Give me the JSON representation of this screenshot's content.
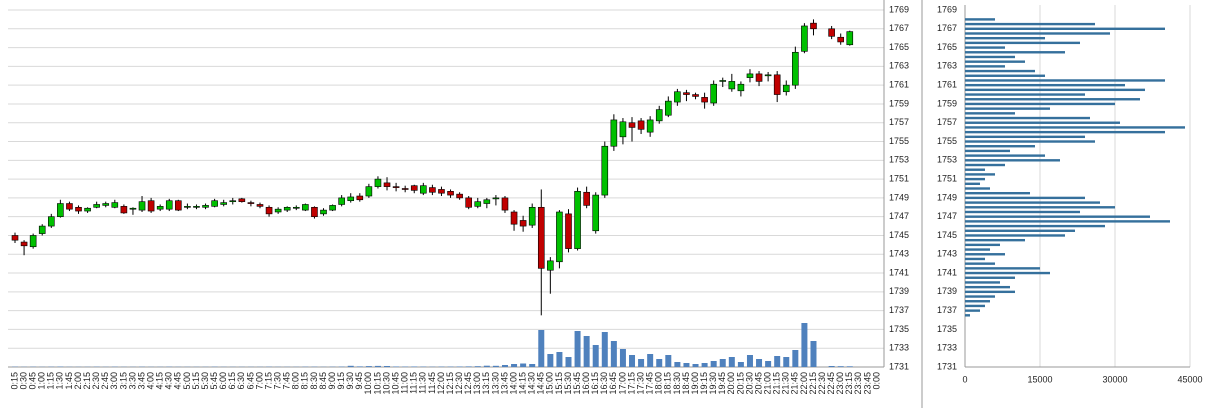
{
  "chart_data": [
    {
      "type": "candlestick",
      "categories": [
        "0:15",
        "0:30",
        "0:45",
        "1:00",
        "1:15",
        "1:30",
        "1:45",
        "2:00",
        "2:15",
        "2:30",
        "2:45",
        "3:00",
        "3:15",
        "3:30",
        "3:45",
        "4:00",
        "4:15",
        "4:30",
        "4:45",
        "5:00",
        "5:15",
        "5:30",
        "5:45",
        "6:00",
        "6:15",
        "6:30",
        "6:45",
        "7:00",
        "7:15",
        "7:30",
        "7:45",
        "8:00",
        "8:15",
        "8:30",
        "8:45",
        "9:00",
        "9:15",
        "9:30",
        "9:45",
        "10:00",
        "10:15",
        "10:30",
        "10:45",
        "11:00",
        "11:15",
        "11:30",
        "11:45",
        "12:00",
        "12:15",
        "12:30",
        "12:45",
        "13:00",
        "13:15",
        "13:30",
        "13:45",
        "14:00",
        "14:15",
        "14:30",
        "14:45",
        "15:00",
        "15:15",
        "15:30",
        "15:45",
        "16:00",
        "16:15",
        "16:30",
        "16:45",
        "17:00",
        "17:15",
        "17:30",
        "17:45",
        "18:00",
        "18:15",
        "18:30",
        "18:45",
        "19:00",
        "19:15",
        "19:30",
        "19:45",
        "20:00",
        "20:15",
        "20:30",
        "20:45",
        "21:00",
        "21:15",
        "21:30",
        "21:45",
        "22:00",
        "22:15",
        "22:30",
        "22:45",
        "23:00",
        "23:15",
        "23:30",
        "23:45",
        "0:00"
      ],
      "open": [
        1745,
        1744.3,
        1743.8,
        1745.2,
        1746,
        1747,
        1748.4,
        1748,
        1747.6,
        1748,
        1748.2,
        1748,
        1748.1,
        1747.8,
        1747.7,
        1748.7,
        1747.8,
        1747.8,
        1748.7,
        1748,
        1748,
        1748,
        1748.1,
        1748.3,
        1748.6,
        1748.9,
        1748.5,
        1748.3,
        1748,
        1747.5,
        1747.7,
        1747.9,
        1747.7,
        1748,
        1747.3,
        1747.7,
        1748.3,
        1748.7,
        1749.2,
        1749.2,
        1750.2,
        1750.6,
        1750.2,
        1750,
        1750.3,
        1749.5,
        1750.1,
        1749.9,
        1749.7,
        1749.4,
        1749,
        1748.1,
        1748.4,
        1748.9,
        1749,
        1747.5,
        1746.6,
        1746.1,
        1748,
        1741.3,
        1742.2,
        1747.3,
        1743.6,
        1749.6,
        1745.5,
        1749.3,
        1754.5,
        1755.5,
        1757,
        1757.2,
        1756,
        1757.2,
        1757.8,
        1759.2,
        1760.2,
        1760,
        1759.7,
        1759.1,
        1761.4,
        1760.6,
        1760.4,
        1761.8,
        1762.2,
        1762,
        1762.1,
        1760.3,
        1761,
        1764.6,
        1767.6,
        null,
        1767,
        1766.1,
        1765.3,
        null,
        null,
        null
      ],
      "high": [
        1745.3,
        1744.5,
        1745.2,
        1746.2,
        1747.3,
        1748.8,
        1748.6,
        1748.2,
        1748,
        1748.6,
        1748.6,
        1748.8,
        1748.3,
        1748,
        1749.2,
        1749,
        1748.3,
        1748.9,
        1748.8,
        1748.4,
        1748.3,
        1748.4,
        1748.9,
        1748.8,
        1749,
        1749,
        1748.7,
        1748.5,
        1748.2,
        1748,
        1748.1,
        1748.2,
        1748.4,
        1748.1,
        1747.9,
        1748.3,
        1749.3,
        1749.5,
        1749.5,
        1750.5,
        1751.3,
        1751.2,
        1750.6,
        1750.3,
        1750.4,
        1750.6,
        1750.4,
        1750.2,
        1749.9,
        1749.6,
        1749.2,
        1749,
        1749,
        1749.3,
        1749.2,
        1747.7,
        1747.1,
        1748.4,
        1749.9,
        1742.7,
        1747.7,
        1747.8,
        1750.1,
        1750.2,
        1749.6,
        1755,
        1757.9,
        1757.5,
        1757.6,
        1757.5,
        1757.7,
        1758.8,
        1759.8,
        1760.6,
        1760.5,
        1760.2,
        1760.2,
        1761.5,
        1761.8,
        1762.2,
        1761.4,
        1762.7,
        1762.5,
        1762.4,
        1762.5,
        1761.5,
        1765.1,
        1767.6,
        1768,
        null,
        1767.3,
        1766.5,
        1766.8,
        null,
        null,
        null
      ],
      "low": [
        1744.2,
        1742.9,
        1743.6,
        1745,
        1745.8,
        1746.9,
        1747.6,
        1747.3,
        1747.4,
        1747.9,
        1748,
        1747.9,
        1747.3,
        1747.2,
        1747.5,
        1747.4,
        1747.6,
        1747.6,
        1747.6,
        1747.8,
        1747.8,
        1747.8,
        1748,
        1748.1,
        1748.3,
        1748.5,
        1748.1,
        1747.9,
        1747,
        1747.3,
        1747.5,
        1747.7,
        1747.6,
        1746.8,
        1747.1,
        1747.6,
        1748.1,
        1748.5,
        1748.6,
        1749,
        1750,
        1749.8,
        1749.7,
        1749.6,
        1749.5,
        1749.3,
        1749.3,
        1749.2,
        1749,
        1748.8,
        1747.8,
        1747.9,
        1747.9,
        1748.2,
        1747.4,
        1745.5,
        1745.4,
        1745.8,
        1736.5,
        1738.8,
        1741.5,
        1743.2,
        1743.4,
        1747.9,
        1745.2,
        1749,
        1754,
        1754.7,
        1755,
        1755.8,
        1755.5,
        1756.9,
        1757.6,
        1758.8,
        1759.3,
        1759.5,
        1758.5,
        1758.8,
        1760.8,
        1760.3,
        1759.8,
        1761.3,
        1760.9,
        1761.4,
        1759.2,
        1759.9,
        1760.6,
        1764.4,
        1766.3,
        null,
        1765.9,
        1765.3,
        1765.2,
        null,
        null,
        null
      ],
      "close": [
        1744.5,
        1743.9,
        1745,
        1746,
        1747,
        1748.4,
        1747.8,
        1747.6,
        1747.9,
        1748.3,
        1748.4,
        1748.5,
        1747.4,
        1747.9,
        1748.6,
        1747.6,
        1748.1,
        1748.7,
        1747.7,
        1748.1,
        1748.1,
        1748.2,
        1748.7,
        1748.5,
        1748.7,
        1748.6,
        1748.4,
        1748.1,
        1747.3,
        1747.8,
        1748,
        1748,
        1748.3,
        1747,
        1747.7,
        1748.2,
        1749,
        1749.1,
        1748.8,
        1750.2,
        1751,
        1750.2,
        1750.1,
        1749.9,
        1749.8,
        1750.3,
        1749.6,
        1749.5,
        1749.3,
        1749,
        1748,
        1748.6,
        1748.8,
        1749,
        1747.7,
        1746.2,
        1746,
        1748,
        1741.5,
        1742.3,
        1747.5,
        1743.6,
        1749.7,
        1748.2,
        1749.3,
        1754.5,
        1757.3,
        1757.1,
        1756.5,
        1756.3,
        1757.3,
        1758.4,
        1759.3,
        1760.3,
        1760,
        1759.8,
        1759.2,
        1761.1,
        1761.5,
        1761.4,
        1761.1,
        1762.2,
        1761.4,
        1762.1,
        1760,
        1761,
        1764.5,
        1767.3,
        1767,
        null,
        1766.2,
        1765.6,
        1766.7,
        null,
        null,
        null
      ],
      "volume": [
        300,
        200,
        300,
        200,
        300,
        400,
        200,
        200,
        200,
        300,
        200,
        300,
        200,
        200,
        300,
        200,
        200,
        300,
        200,
        200,
        200,
        200,
        300,
        200,
        200,
        200,
        200,
        200,
        300,
        200,
        200,
        200,
        300,
        300,
        200,
        300,
        400,
        1200,
        600,
        900,
        1100,
        1000,
        500,
        400,
        500,
        400,
        300,
        400,
        400,
        500,
        600,
        800,
        1300,
        1200,
        2000,
        3000,
        3500,
        3000,
        37000,
        13000,
        15000,
        10000,
        36000,
        31000,
        22000,
        35000,
        26000,
        18000,
        12000,
        8000,
        13000,
        8000,
        12000,
        5000,
        4000,
        3000,
        4000,
        6000,
        8000,
        10000,
        5000,
        12000,
        8000,
        6000,
        11000,
        10000,
        17000,
        44000,
        26000,
        null,
        1000,
        800,
        700,
        null,
        null,
        null
      ],
      "ylim": [
        1731,
        1769
      ],
      "yticks": [
        1731,
        1733,
        1735,
        1737,
        1739,
        1741,
        1743,
        1745,
        1747,
        1749,
        1751,
        1753,
        1755,
        1757,
        1759,
        1761,
        1763,
        1765,
        1767,
        1769
      ],
      "grid": true,
      "up_color": "#00c000",
      "down_color": "#c00000",
      "volume_color": "#4f81bd"
    },
    {
      "type": "bar",
      "orientation": "horizontal",
      "prices": [
        1768,
        1767.5,
        1767,
        1766.5,
        1766,
        1765.5,
        1765,
        1764.5,
        1764,
        1763.5,
        1763,
        1762.5,
        1762,
        1761.5,
        1761,
        1760.5,
        1760,
        1759.5,
        1759,
        1758.5,
        1758,
        1757.5,
        1757,
        1756.5,
        1756,
        1755.5,
        1755,
        1754.5,
        1754,
        1753.5,
        1753,
        1752.5,
        1752,
        1751.5,
        1751,
        1750.5,
        1750,
        1749.5,
        1749,
        1748.5,
        1748,
        1747.5,
        1747,
        1746.5,
        1746,
        1745.5,
        1745,
        1744.5,
        1744,
        1743.5,
        1743,
        1742.5,
        1742,
        1741.5,
        1741,
        1740.5,
        1740,
        1739.5,
        1739,
        1738.5,
        1738,
        1737.5,
        1737,
        1736.5
      ],
      "values": [
        6000,
        26000,
        40000,
        29000,
        16000,
        23000,
        8000,
        20000,
        10000,
        12000,
        8000,
        14000,
        16000,
        40000,
        32000,
        36000,
        24000,
        35000,
        30000,
        17000,
        10000,
        25000,
        31000,
        44000,
        40000,
        24000,
        26000,
        14000,
        9000,
        16000,
        19000,
        8000,
        4000,
        6000,
        4000,
        3000,
        5000,
        13000,
        24000,
        27000,
        30000,
        23000,
        37000,
        41000,
        28000,
        22000,
        20000,
        12000,
        7000,
        5000,
        8000,
        4000,
        6000,
        15000,
        17000,
        10000,
        7000,
        9000,
        10000,
        6000,
        5000,
        4000,
        3000,
        1000
      ],
      "ylim": [
        1731,
        1769
      ],
      "xlim": [
        0,
        45000
      ],
      "xticks": [
        0,
        15000,
        30000,
        45000
      ],
      "grid": true,
      "color": "#35709c"
    }
  ]
}
